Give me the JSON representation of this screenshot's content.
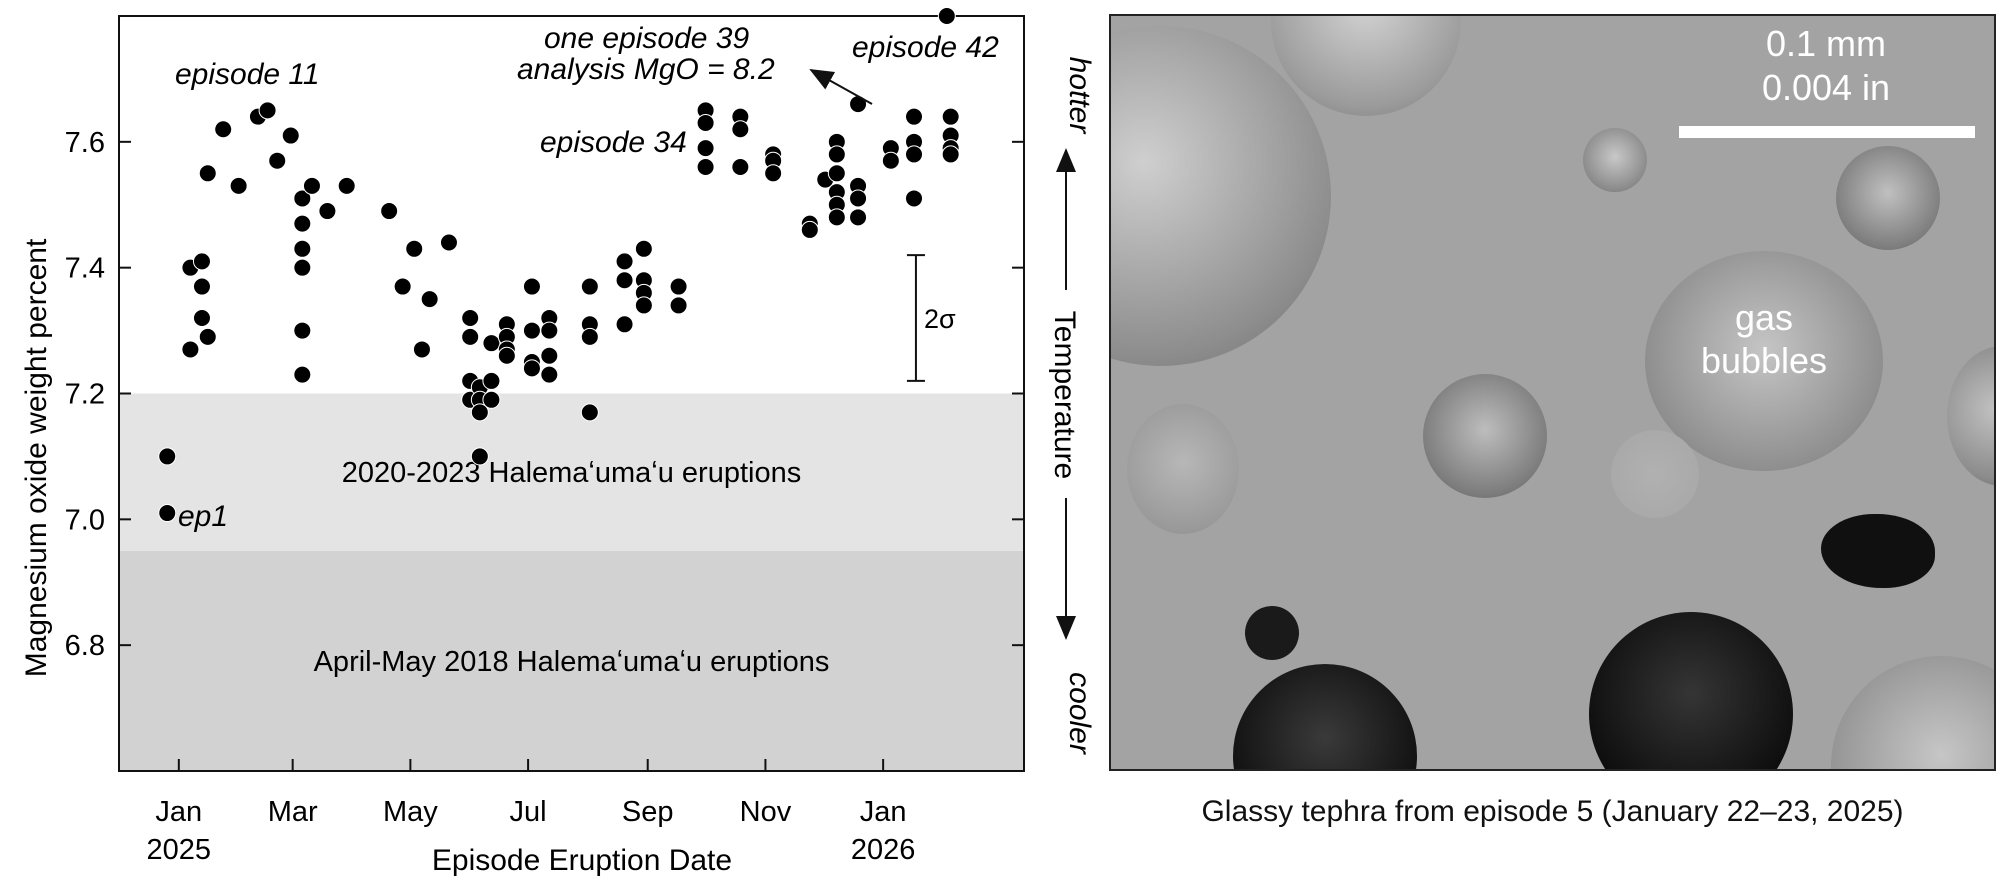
{
  "chart_data": {
    "type": "scatter",
    "xlabel": "Episode Eruption Date",
    "ylabel": "Magnesium oxide weight percent",
    "xlim": [
      "2024-12-01",
      "2026-03-15"
    ],
    "ylim": [
      6.6,
      7.8
    ],
    "x_ticks": [
      {
        "date": "2025-01-01",
        "line1": "Jan",
        "line2": "2025"
      },
      {
        "date": "2025-03-01",
        "line1": "Mar",
        "line2": ""
      },
      {
        "date": "2025-05-01",
        "line1": "May",
        "line2": ""
      },
      {
        "date": "2025-07-01",
        "line1": "Jul",
        "line2": ""
      },
      {
        "date": "2025-09-01",
        "line1": "Sep",
        "line2": ""
      },
      {
        "date": "2025-11-01",
        "line1": "Nov",
        "line2": ""
      },
      {
        "date": "2026-01-01",
        "line1": "Jan",
        "line2": "2026"
      }
    ],
    "y_ticks": [
      6.8,
      7.0,
      7.2,
      7.4,
      7.6
    ],
    "grid": false,
    "bands": [
      {
        "label": "2020-2023 Halemaʻumaʻu eruptions",
        "y0": 6.95,
        "y1": 7.2,
        "color": "#e4e4e4"
      },
      {
        "label": "April-May 2018 Halemaʻumaʻu eruptions",
        "y0": 6.6,
        "y1": 6.95,
        "color": "#d2d2d2"
      }
    ],
    "annotations": {
      "ep1": "ep1",
      "episode11": "episode 11",
      "episode34": "episode 34",
      "episode39_line1": "one episode 39",
      "episode39_line2": "analysis MgO = 8.2",
      "episode42": "episode 42"
    },
    "error_bar": {
      "label": "2σ",
      "date": "2026-01-18",
      "y_low": 7.22,
      "y_high": 7.42
    },
    "points": [
      {
        "x": "2024-12-26",
        "y": 7.1
      },
      {
        "x": "2024-12-26",
        "y": 7.01
      },
      {
        "x": "2025-01-07",
        "y": 7.4
      },
      {
        "x": "2025-01-07",
        "y": 7.27
      },
      {
        "x": "2025-01-13",
        "y": 7.41
      },
      {
        "x": "2025-01-13",
        "y": 7.37
      },
      {
        "x": "2025-01-13",
        "y": 7.32
      },
      {
        "x": "2025-01-16",
        "y": 7.55
      },
      {
        "x": "2025-01-16",
        "y": 7.29
      },
      {
        "x": "2025-01-24",
        "y": 7.62
      },
      {
        "x": "2025-02-01",
        "y": 7.53
      },
      {
        "x": "2025-02-11",
        "y": 7.64
      },
      {
        "x": "2025-02-16",
        "y": 7.65
      },
      {
        "x": "2025-02-21",
        "y": 7.57
      },
      {
        "x": "2025-02-28",
        "y": 7.61
      },
      {
        "x": "2025-03-06",
        "y": 7.51
      },
      {
        "x": "2025-03-06",
        "y": 7.47
      },
      {
        "x": "2025-03-06",
        "y": 7.43
      },
      {
        "x": "2025-03-06",
        "y": 7.4
      },
      {
        "x": "2025-03-06",
        "y": 7.3
      },
      {
        "x": "2025-03-06",
        "y": 7.23
      },
      {
        "x": "2025-03-11",
        "y": 7.53
      },
      {
        "x": "2025-03-19",
        "y": 7.49
      },
      {
        "x": "2025-03-29",
        "y": 7.53
      },
      {
        "x": "2025-04-20",
        "y": 7.49
      },
      {
        "x": "2025-04-27",
        "y": 7.37
      },
      {
        "x": "2025-05-03",
        "y": 7.43
      },
      {
        "x": "2025-05-07",
        "y": 7.27
      },
      {
        "x": "2025-05-11",
        "y": 7.35
      },
      {
        "x": "2025-05-21",
        "y": 7.44
      },
      {
        "x": "2025-06-01",
        "y": 7.32
      },
      {
        "x": "2025-06-01",
        "y": 7.29
      },
      {
        "x": "2025-06-01",
        "y": 7.22
      },
      {
        "x": "2025-06-01",
        "y": 7.19
      },
      {
        "x": "2025-06-06",
        "y": 7.21
      },
      {
        "x": "2025-06-06",
        "y": 7.19
      },
      {
        "x": "2025-06-06",
        "y": 7.17
      },
      {
        "x": "2025-06-06",
        "y": 7.1
      },
      {
        "x": "2025-06-12",
        "y": 7.28
      },
      {
        "x": "2025-06-12",
        "y": 7.22
      },
      {
        "x": "2025-06-12",
        "y": 7.19
      },
      {
        "x": "2025-06-20",
        "y": 7.31
      },
      {
        "x": "2025-06-20",
        "y": 7.29
      },
      {
        "x": "2025-06-20",
        "y": 7.27
      },
      {
        "x": "2025-06-20",
        "y": 7.26
      },
      {
        "x": "2025-07-03",
        "y": 7.37
      },
      {
        "x": "2025-07-03",
        "y": 7.3
      },
      {
        "x": "2025-07-03",
        "y": 7.25
      },
      {
        "x": "2025-07-03",
        "y": 7.24
      },
      {
        "x": "2025-07-12",
        "y": 7.32
      },
      {
        "x": "2025-07-12",
        "y": 7.3
      },
      {
        "x": "2025-07-12",
        "y": 7.26
      },
      {
        "x": "2025-07-12",
        "y": 7.23
      },
      {
        "x": "2025-08-02",
        "y": 7.37
      },
      {
        "x": "2025-08-02",
        "y": 7.31
      },
      {
        "x": "2025-08-02",
        "y": 7.29
      },
      {
        "x": "2025-08-02",
        "y": 7.17
      },
      {
        "x": "2025-08-20",
        "y": 7.41
      },
      {
        "x": "2025-08-20",
        "y": 7.38
      },
      {
        "x": "2025-08-20",
        "y": 7.31
      },
      {
        "x": "2025-08-30",
        "y": 7.43
      },
      {
        "x": "2025-08-30",
        "y": 7.38
      },
      {
        "x": "2025-08-30",
        "y": 7.36
      },
      {
        "x": "2025-08-30",
        "y": 7.34
      },
      {
        "x": "2025-09-17",
        "y": 7.37
      },
      {
        "x": "2025-09-17",
        "y": 7.34
      },
      {
        "x": "2025-10-01",
        "y": 7.65
      },
      {
        "x": "2025-10-01",
        "y": 7.63
      },
      {
        "x": "2025-10-01",
        "y": 7.59
      },
      {
        "x": "2025-10-01",
        "y": 7.56
      },
      {
        "x": "2025-10-19",
        "y": 7.64
      },
      {
        "x": "2025-10-19",
        "y": 7.62
      },
      {
        "x": "2025-10-19",
        "y": 7.56
      },
      {
        "x": "2025-11-05",
        "y": 7.58
      },
      {
        "x": "2025-11-05",
        "y": 7.57
      },
      {
        "x": "2025-11-05",
        "y": 7.55
      },
      {
        "x": "2025-11-24",
        "y": 7.47
      },
      {
        "x": "2025-11-24",
        "y": 7.46
      },
      {
        "x": "2025-12-02",
        "y": 7.54
      },
      {
        "x": "2025-12-08",
        "y": 7.6
      },
      {
        "x": "2025-12-08",
        "y": 7.58
      },
      {
        "x": "2025-12-08",
        "y": 7.55
      },
      {
        "x": "2025-12-08",
        "y": 7.52
      },
      {
        "x": "2025-12-08",
        "y": 7.5
      },
      {
        "x": "2025-12-08",
        "y": 7.48
      },
      {
        "x": "2025-12-19",
        "y": 7.53
      },
      {
        "x": "2025-12-19",
        "y": 7.51
      },
      {
        "x": "2025-12-19",
        "y": 7.48
      },
      {
        "x": "2025-12-19",
        "y": 7.66
      },
      {
        "x": "2026-01-05",
        "y": 7.59
      },
      {
        "x": "2026-01-05",
        "y": 7.57
      },
      {
        "x": "2026-01-17",
        "y": 7.64
      },
      {
        "x": "2026-01-17",
        "y": 7.6
      },
      {
        "x": "2026-01-17",
        "y": 7.58
      },
      {
        "x": "2026-01-17",
        "y": 7.51
      },
      {
        "x": "2026-02-03",
        "y": 7.8
      },
      {
        "x": "2026-02-05",
        "y": 7.64
      },
      {
        "x": "2026-02-05",
        "y": 7.61
      },
      {
        "x": "2026-02-05",
        "y": 7.59
      },
      {
        "x": "2026-02-05",
        "y": 7.58
      }
    ]
  },
  "temperature_axis": {
    "hot_label": "hotter",
    "title": "Temperature",
    "cold_label": "cooler"
  },
  "photo": {
    "scale_line1": "0.1 mm",
    "scale_line2": "0.004 in",
    "bubble_label_line1": "gas",
    "bubble_label_line2": "bubbles",
    "caption": "Glassy tephra from episode 5 (January 22–23, 2025)"
  }
}
